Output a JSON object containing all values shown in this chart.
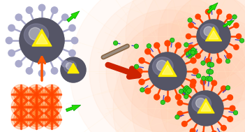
{
  "bg_color": "#ffffff",
  "glow_color_light": "#ffddcc",
  "glow_color": "#ffccaa",
  "np_gray_dark": "#555566",
  "np_gray_mid": "#777788",
  "np_gray_light": "#aaaacc",
  "core_yellow": "#ffee00",
  "core_yellow2": "#ddcc00",
  "spike_gray": "#aaaacc",
  "spike_hot": "#ff4400",
  "spike_hot2": "#ff6600",
  "green_mol": "#33cc22",
  "green_mol_dark": "#009900",
  "linker_blue": "#4444cc",
  "arrow_red": "#cc2200",
  "arrow_orange": "#ff5500",
  "stick_brown": "#886644",
  "stick_gray": "#aaaaaa",
  "orange_star": "#ff4400",
  "orange_star2": "#ff6600"
}
